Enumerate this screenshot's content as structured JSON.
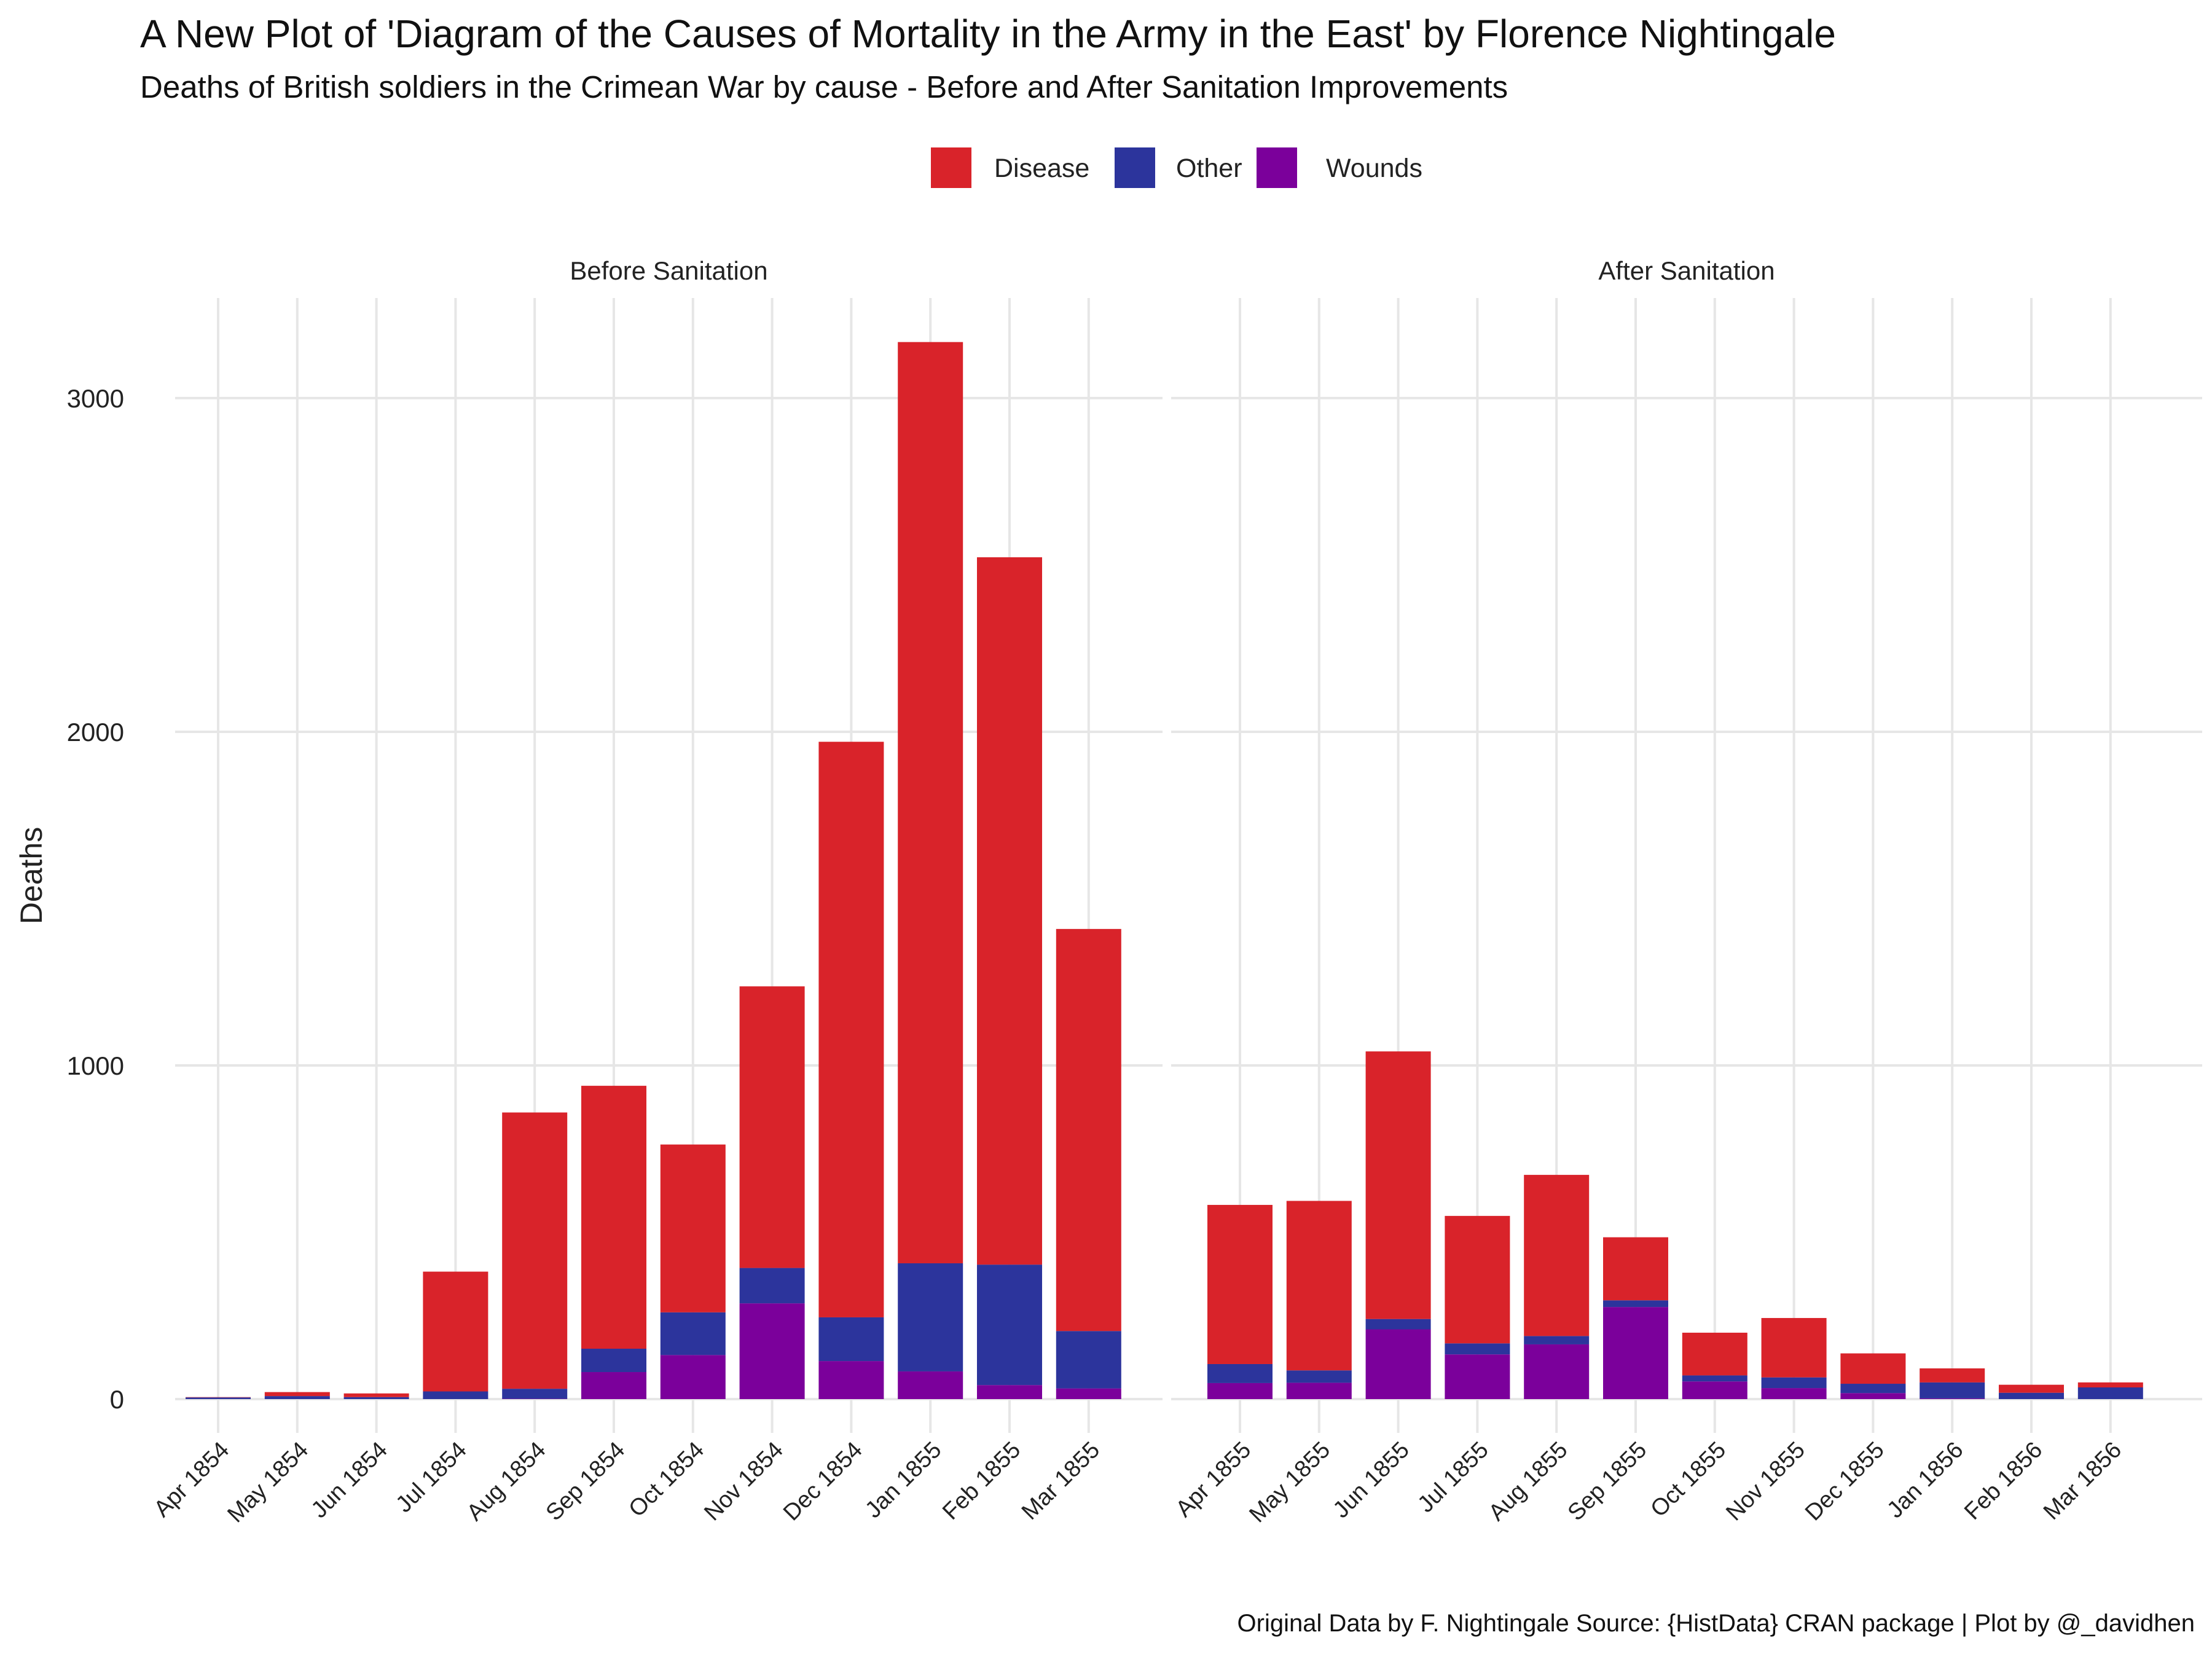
{
  "title": "A New Plot of 'Diagram of the Causes of Mortality in the Army in the East' by Florence Nightingale",
  "subtitle": "Deaths of British soldiers in the Crimean War by cause - Before and After Sanitation Improvements",
  "caption": "Original Data by F. Nightingale Source: {HistData} CRAN package | Plot by @_davidhen",
  "colors": {
    "Disease": "#d9232a",
    "Other": "#2c349c",
    "Wounds": "#7b009b",
    "grid": "#e6e6e6"
  },
  "chart_data": {
    "type": "bar",
    "stacked": true,
    "ylabel": "Deaths",
    "xlabel": "",
    "ylim": [
      0,
      3300
    ],
    "yticks": [
      0,
      1000,
      2000,
      3000
    ],
    "grid": true,
    "legend": {
      "position": "top",
      "entries": [
        "Disease",
        "Other",
        "Wounds"
      ]
    },
    "stack_order_bottom_to_top": [
      "Wounds",
      "Other",
      "Disease"
    ],
    "panels": [
      {
        "label": "Before Sanitation",
        "categories": [
          "Apr 1854",
          "May 1854",
          "Jun 1854",
          "Jul 1854",
          "Aug 1854",
          "Sep 1854",
          "Oct 1854",
          "Nov 1854",
          "Dec 1854",
          "Jan 1855",
          "Feb 1855",
          "Mar 1855"
        ],
        "series": [
          {
            "name": "Disease",
            "values": [
              1,
              12,
              11,
              359,
              828,
              788,
              503,
              844,
              1725,
              2761,
              2120,
              1205
            ]
          },
          {
            "name": "Other",
            "values": [
              5,
              9,
              6,
              23,
              30,
              70,
              128,
              106,
              131,
              324,
              361,
              172
            ]
          },
          {
            "name": "Wounds",
            "values": [
              0,
              0,
              0,
              0,
              1,
              81,
              132,
              287,
              114,
              83,
              42,
              32
            ]
          }
        ]
      },
      {
        "label": "After Sanitation",
        "categories": [
          "Apr 1855",
          "May 1855",
          "Jun 1855",
          "Jul 1855",
          "Aug 1855",
          "Sep 1855",
          "Oct 1855",
          "Nov 1855",
          "Dec 1855",
          "Jan 1856",
          "Feb 1856",
          "Mar 1856"
        ],
        "series": [
          {
            "name": "Disease",
            "values": [
              477,
              508,
              802,
              382,
              483,
              189,
              128,
              178,
              91,
              42,
              24,
              15
            ]
          },
          {
            "name": "Other",
            "values": [
              57,
              37,
              31,
              33,
              25,
              20,
              18,
              32,
              28,
              48,
              19,
              35
            ]
          },
          {
            "name": "Wounds",
            "values": [
              48,
              49,
              209,
              134,
              164,
              276,
              53,
              33,
              18,
              2,
              0,
              0
            ]
          }
        ]
      }
    ]
  }
}
